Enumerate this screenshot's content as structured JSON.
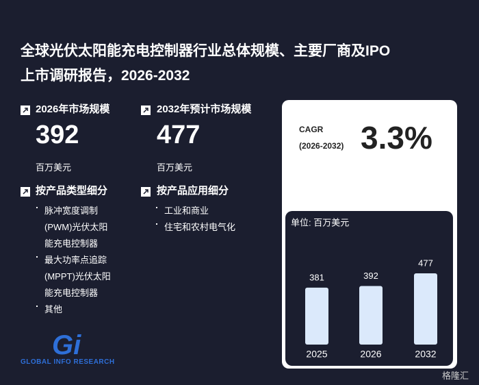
{
  "title": [
    "全球光伏太阳能充电控制器行业总体规模、主要厂商及IPO",
    "上市调研报告，2026-2032"
  ],
  "stats": [
    {
      "label": "2026年市场规模",
      "value": 392,
      "unit": "百万美元"
    },
    {
      "label": "2032年预计市场规模",
      "value": 477,
      "unit": "百万美元"
    }
  ],
  "segments": [
    {
      "heading": "按产品类型细分",
      "items": [
        "脉冲宽度调制(PWM)光伏太阳能充电控制器",
        "最大功率点追踪(MPPT)光伏太阳能充电控制器",
        "其他"
      ]
    },
    {
      "heading": "按产品应用细分",
      "items": [
        "工业和商业",
        "住宅和农村电气化"
      ]
    }
  ],
  "cagr": {
    "label": "CAGR",
    "period": "(2026-2032)",
    "value": "3.3%"
  },
  "chart_data": {
    "type": "bar",
    "unit_label": "单位: 百万美元",
    "categories": [
      "2025",
      "2026",
      "2032"
    ],
    "values": [
      381,
      392,
      477
    ],
    "color": "#dbe9fb"
  },
  "logo": {
    "mark": "Gi",
    "text": "GLOBAL INFO RESEARCH"
  },
  "source": "格隆汇"
}
